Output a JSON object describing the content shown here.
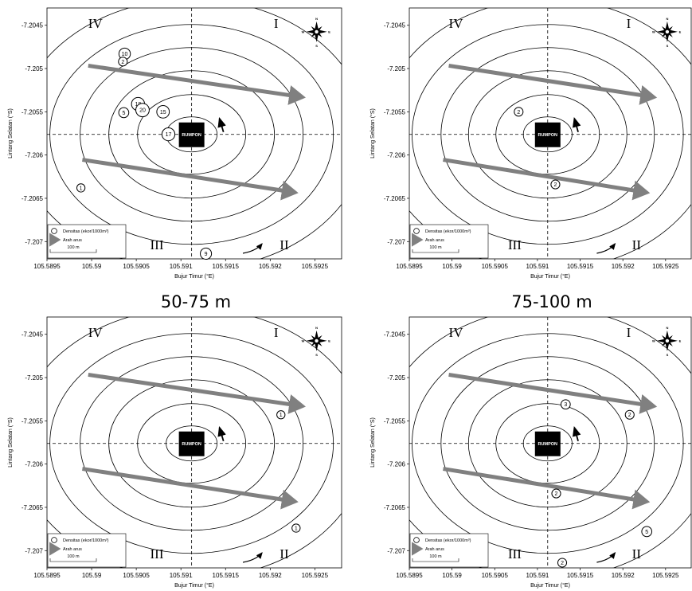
{
  "chart_data": [
    {
      "type": "scatter",
      "title": "",
      "xlabel": "Bujur Timur (°E)",
      "ylabel": "Lintang Selatan (°S)",
      "xlim": [
        105.5895,
        105.5928
      ],
      "ylim": [
        -7.2072,
        -7.2043
      ],
      "x_ticks": [
        "105.5895",
        "105.59",
        "105.5905",
        "105.591",
        "105.5915",
        "105.592",
        "105.5925"
      ],
      "y_ticks": [
        "-7.2045",
        "-7.205",
        "-7.2055",
        "-7.206",
        "-7.2065",
        "-7.207"
      ],
      "quadrants": [
        "I",
        "II",
        "III",
        "IV"
      ],
      "center_label": "RUMPON",
      "legend": {
        "density_label": "Densitas (ekor/1000m³)",
        "current_label": "Arah arus",
        "scale_label": "100 m"
      },
      "compass": {
        "n": "N",
        "s": "S",
        "e": "E",
        "w": "W"
      },
      "points": [
        {
          "x": 105.59037,
          "y": -7.20483,
          "label": "10"
        },
        {
          "x": 105.59035,
          "y": -7.20492,
          "label": "2"
        },
        {
          "x": 105.59052,
          "y": -7.20541,
          "label": "18"
        },
        {
          "x": 105.59057,
          "y": -7.20548,
          "label": "20"
        },
        {
          "x": 105.59036,
          "y": -7.20551,
          "label": "5"
        },
        {
          "x": 105.5908,
          "y": -7.2055,
          "label": "15"
        },
        {
          "x": 105.59086,
          "y": -7.20576,
          "label": "17"
        },
        {
          "x": 105.58988,
          "y": -7.20638,
          "label": "1"
        },
        {
          "x": 105.59128,
          "y": -7.20714,
          "label": "9"
        }
      ]
    },
    {
      "type": "scatter",
      "title": "",
      "xlabel": "Bujur Timur (°E)",
      "ylabel": "Lintang Selatan (°S)",
      "xlim": [
        105.5895,
        105.5928
      ],
      "ylim": [
        -7.2072,
        -7.2043
      ],
      "x_ticks": [
        "105.5895",
        "105.59",
        "105.5905",
        "105.591",
        "105.5915",
        "105.592",
        "105.5925"
      ],
      "y_ticks": [
        "-7.2045",
        "-7.205",
        "-7.2055",
        "-7.206",
        "-7.2065",
        "-7.207"
      ],
      "quadrants": [
        "I",
        "II",
        "III",
        "IV"
      ],
      "center_label": "RUMPON",
      "legend": {
        "density_label": "Densitas (ekor/1000m³)",
        "current_label": "Arah arus",
        "scale_label": "100 m"
      },
      "compass": {
        "n": "N",
        "s": "S",
        "e": "E",
        "w": "W"
      },
      "points": [
        {
          "x": 105.59078,
          "y": -7.2055,
          "label": "2"
        },
        {
          "x": 105.59121,
          "y": -7.20634,
          "label": "2"
        }
      ]
    },
    {
      "type": "scatter",
      "title": "50-75 m",
      "xlabel": "Bujur Timur (°E)",
      "ylabel": "Lintang Selatan (°S)",
      "xlim": [
        105.5895,
        105.5928
      ],
      "ylim": [
        -7.2072,
        -7.2043
      ],
      "x_ticks": [
        "105.5895",
        "105.59",
        "105.5905",
        "105.591",
        "105.5915",
        "105.592",
        "105.5925"
      ],
      "y_ticks": [
        "-7.2045",
        "-7.205",
        "-7.2055",
        "-7.206",
        "-7.2065",
        "-7.207"
      ],
      "quadrants": [
        "I",
        "II",
        "III",
        "IV"
      ],
      "center_label": "RUMPON",
      "legend": {
        "density_label": "Densitas (ekor/1000m³)",
        "current_label": "Arah arus",
        "scale_label": "100 m"
      },
      "compass": {
        "n": "N",
        "s": "S",
        "e": "E",
        "w": "W"
      },
      "points": [
        {
          "x": 105.59212,
          "y": -7.20543,
          "label": "1"
        },
        {
          "x": 105.59229,
          "y": -7.20674,
          "label": "1"
        }
      ]
    },
    {
      "type": "scatter",
      "title": "75-100 m",
      "xlabel": "Bujur Timur (°E)",
      "ylabel": "Lintang Selatan (°S)",
      "xlim": [
        105.5895,
        105.5928
      ],
      "ylim": [
        -7.2072,
        -7.2043
      ],
      "x_ticks": [
        "105.5895",
        "105.59",
        "105.5905",
        "105.591",
        "105.5915",
        "105.592",
        "105.5925"
      ],
      "y_ticks": [
        "-7.2045",
        "-7.205",
        "-7.2055",
        "-7.206",
        "-7.2065",
        "-7.207"
      ],
      "quadrants": [
        "I",
        "II",
        "III",
        "IV"
      ],
      "center_label": "RUMPON",
      "legend": {
        "density_label": "Densitas (ekor/1000m³)",
        "current_label": "Arah arus",
        "scale_label": "100 m"
      },
      "compass": {
        "n": "N",
        "s": "S",
        "e": "E",
        "w": "W"
      },
      "points": [
        {
          "x": 105.59133,
          "y": -7.20531,
          "label": "3"
        },
        {
          "x": 105.59208,
          "y": -7.20543,
          "label": "2"
        },
        {
          "x": 105.59122,
          "y": -7.20634,
          "label": "2"
        },
        {
          "x": 105.59228,
          "y": -7.20678,
          "label": "5"
        },
        {
          "x": 105.59129,
          "y": -7.20714,
          "label": "2"
        }
      ]
    }
  ]
}
